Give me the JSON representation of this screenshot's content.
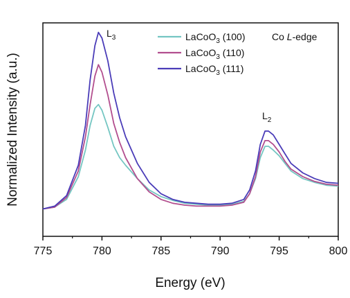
{
  "chart_data": {
    "type": "line",
    "xlabel": "Energy (eV)",
    "ylabel": "Normalized Intensity (a.u.)",
    "xlim": [
      775,
      800
    ],
    "ylim": [
      0,
      1
    ],
    "x_ticks": [
      "775",
      "780",
      "785",
      "790",
      "795",
      "800"
    ],
    "y_ticks": [],
    "grid": false,
    "legend_position": "top-center",
    "annotations": [
      {
        "text": "Co ",
        "italic_part": "L",
        "suffix": "-edge"
      },
      {
        "label": "L",
        "subscript": "3"
      },
      {
        "label": "L",
        "subscript": "2"
      }
    ],
    "series": [
      {
        "name": "LaCoO3 (100)",
        "name_parts": {
          "base": "LaCoO",
          "sub": "3",
          "tail": " (100)"
        },
        "color": "#74c6c2",
        "x": [
          775,
          776,
          777,
          778,
          778.6,
          779.0,
          779.4,
          779.7,
          780.0,
          780.5,
          781,
          781.5,
          782,
          783,
          784,
          785,
          786,
          787,
          788,
          789,
          790,
          791,
          792,
          792.5,
          793,
          793.4,
          793.8,
          794.1,
          794.5,
          795,
          795.5,
          796,
          797,
          798,
          799,
          800
        ],
        "y": [
          0.02,
          0.03,
          0.07,
          0.19,
          0.33,
          0.46,
          0.55,
          0.57,
          0.54,
          0.45,
          0.35,
          0.29,
          0.25,
          0.18,
          0.12,
          0.085,
          0.065,
          0.05,
          0.045,
          0.04,
          0.04,
          0.045,
          0.06,
          0.1,
          0.18,
          0.29,
          0.35,
          0.35,
          0.33,
          0.3,
          0.26,
          0.22,
          0.18,
          0.16,
          0.145,
          0.14
        ]
      },
      {
        "name": "LaCoO3 (110)",
        "name_parts": {
          "base": "LaCoO",
          "sub": "3",
          "tail": " (110)"
        },
        "color": "#b24e8e",
        "x": [
          775,
          776,
          777,
          778,
          778.6,
          779.0,
          779.4,
          779.7,
          780.0,
          780.5,
          781,
          781.5,
          782,
          783,
          784,
          785,
          786,
          787,
          788,
          789,
          790,
          791,
          792,
          792.5,
          793,
          793.4,
          793.8,
          794.1,
          794.5,
          795,
          795.5,
          796,
          797,
          798,
          799,
          800
        ],
        "y": [
          0.02,
          0.03,
          0.08,
          0.22,
          0.4,
          0.57,
          0.72,
          0.78,
          0.74,
          0.62,
          0.47,
          0.37,
          0.29,
          0.18,
          0.11,
          0.07,
          0.05,
          0.04,
          0.035,
          0.035,
          0.035,
          0.04,
          0.055,
          0.1,
          0.19,
          0.32,
          0.38,
          0.38,
          0.36,
          0.32,
          0.27,
          0.23,
          0.19,
          0.165,
          0.15,
          0.145
        ]
      },
      {
        "name": "LaCoO3 (111)",
        "name_parts": {
          "base": "LaCoO",
          "sub": "3",
          "tail": " (111)"
        },
        "color": "#4a3cb8",
        "x": [
          775,
          776,
          777,
          778,
          778.6,
          779.0,
          779.4,
          779.7,
          780.0,
          780.5,
          781,
          781.5,
          782,
          783,
          784,
          785,
          786,
          787,
          788,
          789,
          790,
          791,
          792,
          792.5,
          793,
          793.4,
          793.8,
          794.1,
          794.5,
          795,
          795.5,
          796,
          797,
          798,
          799,
          800
        ],
        "y": [
          0.02,
          0.035,
          0.09,
          0.25,
          0.46,
          0.7,
          0.88,
          0.95,
          0.92,
          0.8,
          0.63,
          0.5,
          0.4,
          0.26,
          0.16,
          0.1,
          0.07,
          0.055,
          0.05,
          0.045,
          0.045,
          0.05,
          0.07,
          0.12,
          0.22,
          0.36,
          0.43,
          0.43,
          0.41,
          0.36,
          0.31,
          0.26,
          0.21,
          0.18,
          0.16,
          0.155
        ]
      }
    ]
  }
}
